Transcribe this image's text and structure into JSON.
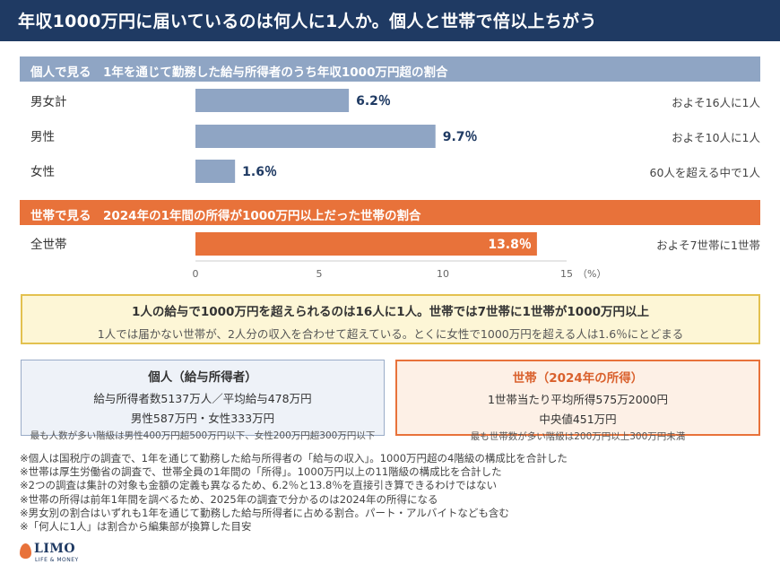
{
  "header": {
    "title": "年収1000万円に届いているのは何人に1人か。個人と世帯で倍以上ちがう"
  },
  "individual_section": {
    "heading": "個人で見る　1年を通じて勤務した給与所得者のうち年収1000万円超の割合",
    "rows": [
      {
        "label": "男女計",
        "value_label": "6.2％",
        "note": "およそ16人に1人"
      },
      {
        "label": "男性",
        "value_label": "9.7％",
        "note": "およそ10人に1人"
      },
      {
        "label": "女性",
        "value_label": "1.6％",
        "note": "60人を超える中で1人"
      }
    ]
  },
  "household_section": {
    "heading": "世帯で見る　2024年の1年間の所得が1000万円以上だった世帯の割合",
    "rows": [
      {
        "label": "全世帯",
        "value_label": "13.8％",
        "note": "およそ7世帯に1世帯"
      }
    ]
  },
  "chart_data": {
    "type": "bar",
    "orientation": "horizontal",
    "categories": [
      "男女計",
      "男性",
      "女性",
      "全世帯"
    ],
    "values": [
      6.2,
      9.7,
      1.6,
      13.8
    ],
    "xlim": [
      0,
      15
    ],
    "xticks": [
      "0",
      "5",
      "10",
      "15"
    ],
    "x_unit": "（%）",
    "colors": [
      "#8fa5c4",
      "#8fa5c4",
      "#8fa5c4",
      "#e8723a"
    ],
    "grid": false
  },
  "summary": {
    "line1": "1人の給与で1000万円を超えられるのは16人に1人。世帯では7世帯に1世帯が1000万円以上",
    "line2": "1人では届かない世帯が、2人分の収入を合わせて超えている。とくに女性で1000万円を超える人は1.6％にとどまる"
  },
  "card_individual": {
    "heading": "個人（給与所得者）",
    "line1": "給与所得者数5137万人／平均給与478万円",
    "line2": "男性587万円・女性333万円",
    "small": "最も人数が多い階級は男性400万円超500万円以下、女性200万円超300万円以下"
  },
  "card_household": {
    "heading": "世帯（2024年の所得）",
    "line1": "1世帯当たり平均所得575万2000円",
    "line2": "中央値451万円",
    "small": "最も世帯数が多い階級は200万円以上300万円未満"
  },
  "notes": [
    "※個人は国税庁の調査で、1年を通じて勤務した給与所得者の「給与の収入」。1000万円超の4階級の構成比を合計した",
    "※世帯は厚生労働省の調査で、世帯全員の1年間の「所得」。1000万円以上の11階級の構成比を合計した",
    "※2つの調査は集計の対象も金額の定義も異なるため、6.2％と13.8％を直接引き算できるわけではない",
    "※世帯の所得は前年1年間を調べるため、2025年の調査で分かるのは2024年の所得になる",
    "※男女別の割合はいずれも1年を通じて勤務した給与所得者に占める割合。パート・アルバイトなども含む",
    "※「何人に1人」は割合から編集部が換算した目安"
  ],
  "logo": {
    "name": "LIMO",
    "tagline": "LIFE & MONEY"
  }
}
